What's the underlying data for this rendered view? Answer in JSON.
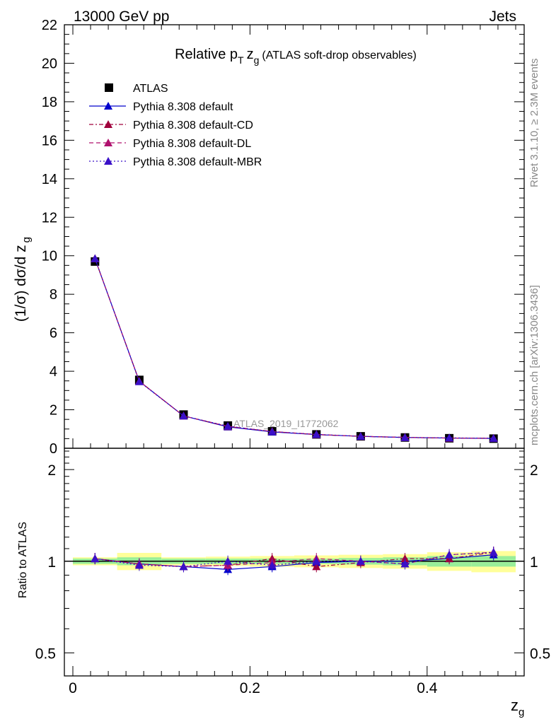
{
  "header": {
    "left": "13000 GeV pp",
    "right": "Jets"
  },
  "side_labels": {
    "rivet": "Rivet 3.1.10, ≥ 2.3M events",
    "mcplots": "mcplots.cern.ch [arXiv:1306.3436]"
  },
  "chart_data": [
    {
      "type": "line",
      "panel": "main",
      "title_main": "Relative p",
      "title_sub_T": "T",
      "title_z": "z",
      "title_sub_g": "g",
      "title_rest": "(ATLAS soft-drop observables)",
      "ylabel": "(1/σ) dσ/d z",
      "ylabel_sub": "g",
      "watermark": "ATLAS_2019_I1772062",
      "ylim": [
        0,
        22
      ],
      "yticks": [
        0,
        2,
        4,
        6,
        8,
        10,
        12,
        14,
        16,
        18,
        20,
        22
      ],
      "ytick_labels": [
        "0",
        "2",
        "4",
        "6",
        "8",
        "10",
        "12",
        "14",
        "16",
        "18",
        "20",
        "22"
      ],
      "x": [
        0.025,
        0.075,
        0.125,
        0.175,
        0.225,
        0.275,
        0.325,
        0.375,
        0.425,
        0.475
      ],
      "legend": [
        "ATLAS",
        "Pythia 8.308 default",
        "Pythia 8.308 default-CD",
        "Pythia 8.308 default-DL",
        "Pythia 8.308 default-MBR"
      ],
      "series": [
        {
          "name": "ATLAS",
          "color": "#000000",
          "marker": "square",
          "values": [
            9.7,
            3.55,
            1.75,
            1.18,
            0.88,
            0.72,
            0.62,
            0.56,
            0.52,
            0.5
          ]
        },
        {
          "name": "Pythia 8.308 default",
          "color": "#0000cc",
          "marker": "triangle",
          "dash": "solid",
          "values": [
            9.85,
            3.48,
            1.68,
            1.11,
            0.85,
            0.71,
            0.62,
            0.56,
            0.53,
            0.51
          ]
        },
        {
          "name": "Pythia 8.308 default-CD",
          "color": "#a0003c",
          "marker": "triangle",
          "dash": "dashdot",
          "values": [
            9.85,
            3.48,
            1.68,
            1.13,
            0.87,
            0.71,
            0.62,
            0.56,
            0.53,
            0.52
          ]
        },
        {
          "name": "Pythia 8.308 default-DL",
          "color": "#b0106e",
          "marker": "triangle",
          "dash": "dash",
          "values": [
            9.85,
            3.48,
            1.68,
            1.14,
            0.87,
            0.72,
            0.62,
            0.57,
            0.53,
            0.52
          ]
        },
        {
          "name": "Pythia 8.308 default-MBR",
          "color": "#3a10c8",
          "marker": "triangle",
          "dash": "dot",
          "values": [
            9.85,
            3.46,
            1.68,
            1.15,
            0.86,
            0.72,
            0.62,
            0.56,
            0.54,
            0.52
          ]
        }
      ]
    },
    {
      "type": "line",
      "panel": "ratio",
      "ylabel": "Ratio to ATLAS",
      "xlabel": "z",
      "xlabel_sub": "g",
      "xlim": [
        0,
        0.5
      ],
      "xticks": [
        0,
        0.2,
        0.4
      ],
      "xtick_labels": [
        "0",
        "0.2",
        "0.4"
      ],
      "ylim": [
        0.42,
        2.35
      ],
      "yscale": "log",
      "yticks": [
        0.5,
        1,
        2
      ],
      "ytick_labels": [
        "0.5",
        "1",
        "2"
      ],
      "bands": {
        "x_edges": [
          0,
          0.05,
          0.1,
          0.15,
          0.2,
          0.25,
          0.3,
          0.35,
          0.4,
          0.45,
          0.5
        ],
        "yellow_halfwidth": [
          0.03,
          0.065,
          0.03,
          0.035,
          0.04,
          0.045,
          0.05,
          0.055,
          0.07,
          0.08
        ],
        "green_halfwidth": [
          0.02,
          0.03,
          0.02,
          0.02,
          0.02,
          0.02,
          0.025,
          0.03,
          0.04,
          0.04
        ]
      },
      "x": [
        0.025,
        0.075,
        0.125,
        0.175,
        0.225,
        0.275,
        0.325,
        0.375,
        0.425,
        0.475
      ],
      "series": [
        {
          "name": "Pythia 8.308 default",
          "color": "#0000cc",
          "dash": "solid",
          "values": [
            1.02,
            0.98,
            0.96,
            0.94,
            0.96,
            0.99,
            1.0,
            1.0,
            1.02,
            1.05
          ]
        },
        {
          "name": "Pythia 8.308 default-CD",
          "color": "#a0003c",
          "dash": "dashdot",
          "values": [
            1.02,
            0.98,
            0.96,
            0.97,
            1.02,
            0.96,
            0.99,
            1.02,
            1.02,
            1.07
          ]
        },
        {
          "name": "Pythia 8.308 default-DL",
          "color": "#b0106e",
          "dash": "dash",
          "values": [
            1.02,
            0.98,
            0.96,
            0.97,
            0.99,
            1.02,
            1.0,
            0.98,
            1.05,
            1.07
          ]
        },
        {
          "name": "Pythia 8.308 default-MBR",
          "color": "#3a10c8",
          "dash": "dot",
          "values": [
            1.02,
            0.97,
            0.96,
            1.0,
            0.97,
            1.0,
            1.0,
            0.98,
            1.05,
            1.07
          ]
        }
      ]
    }
  ]
}
